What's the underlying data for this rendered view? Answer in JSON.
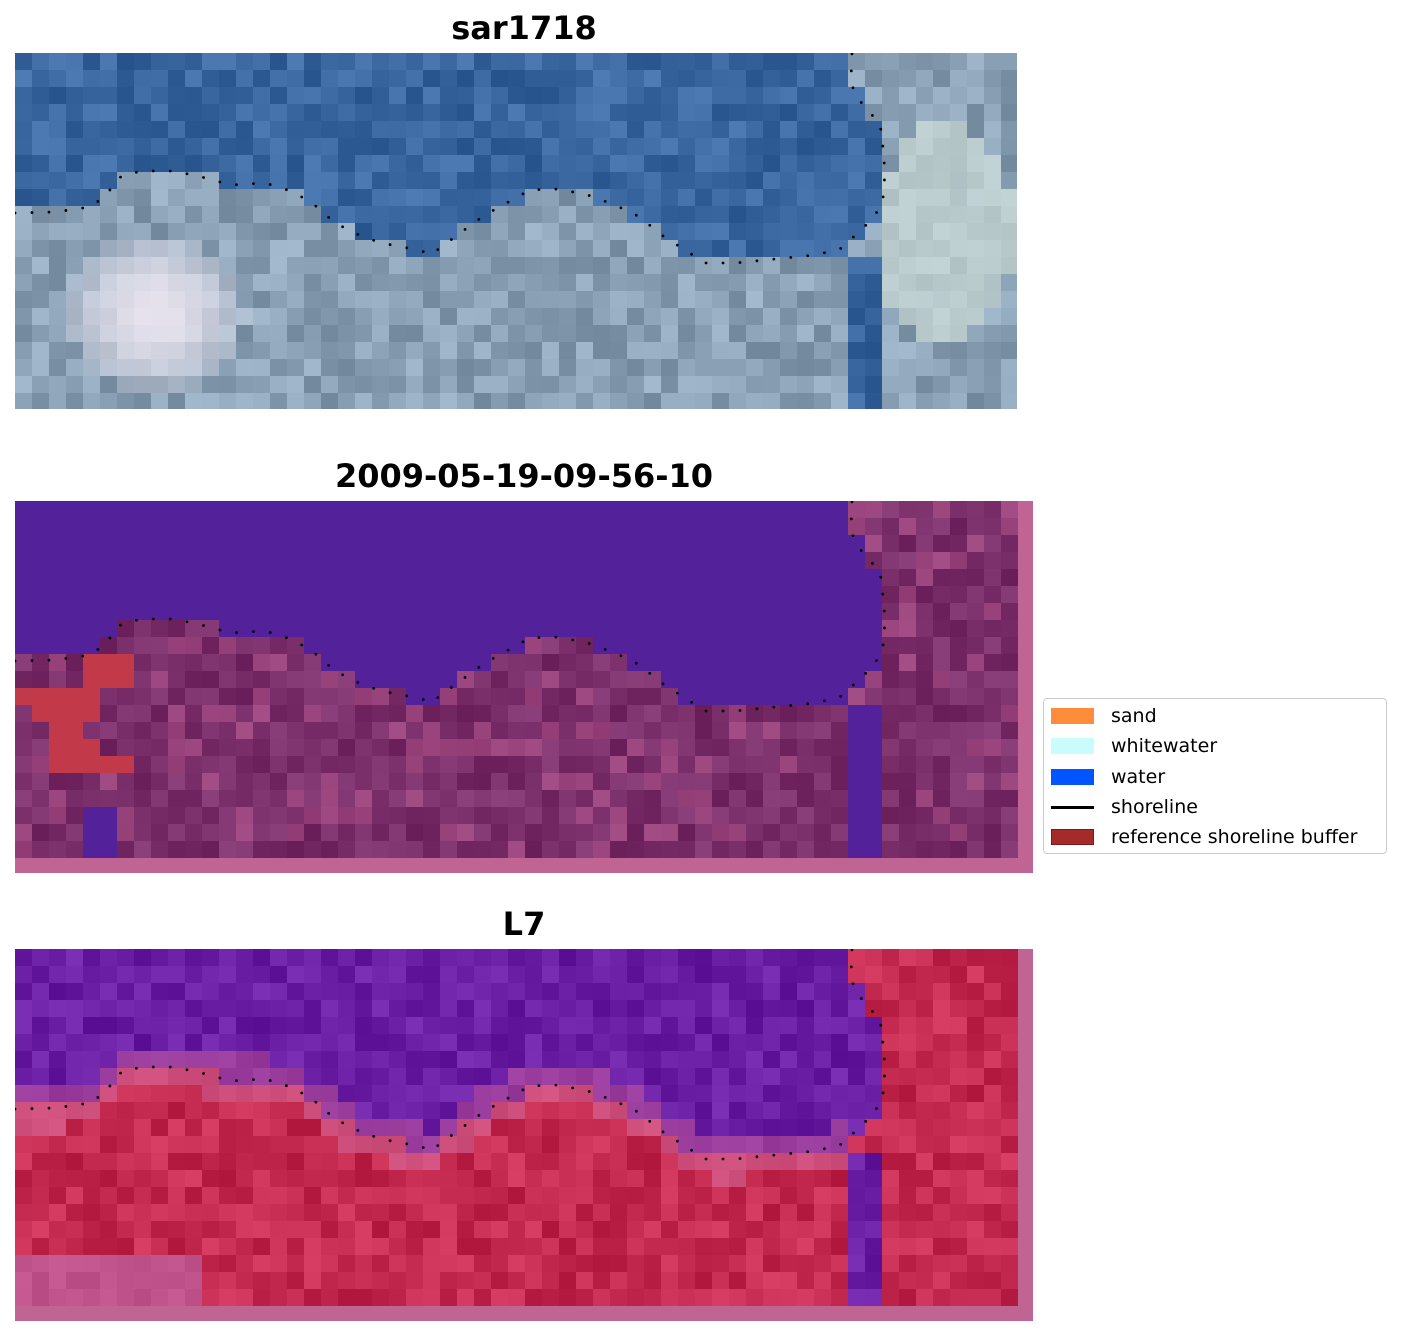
{
  "panels": [
    {
      "title": "sar1718",
      "kind": "rgb"
    },
    {
      "title": "2009-05-19-09-56-10",
      "kind": "classification"
    },
    {
      "title": "L7",
      "kind": "index"
    }
  ],
  "legend": {
    "items": [
      {
        "label": "sand",
        "type": "patch",
        "color": "#ff8c3a"
      },
      {
        "label": "whitewater",
        "type": "patch",
        "color": "#c8fdfc"
      },
      {
        "label": "water",
        "type": "patch",
        "color": "#0055ff"
      },
      {
        "label": "shoreline",
        "type": "line",
        "color": "#000000"
      },
      {
        "label": "reference shoreline buffer",
        "type": "patch",
        "color": "#a52a2a"
      }
    ]
  },
  "colors": {
    "water_class": "#53229a",
    "land_class": "#7a2f6b",
    "buffer_class": "#c23a49",
    "index_water": "#6a1ea3",
    "index_land": "#c4294f",
    "rgb_sea": "#3a67a0",
    "rgb_land": "#8aa0b5",
    "shoreline_dots": "#000000"
  }
}
